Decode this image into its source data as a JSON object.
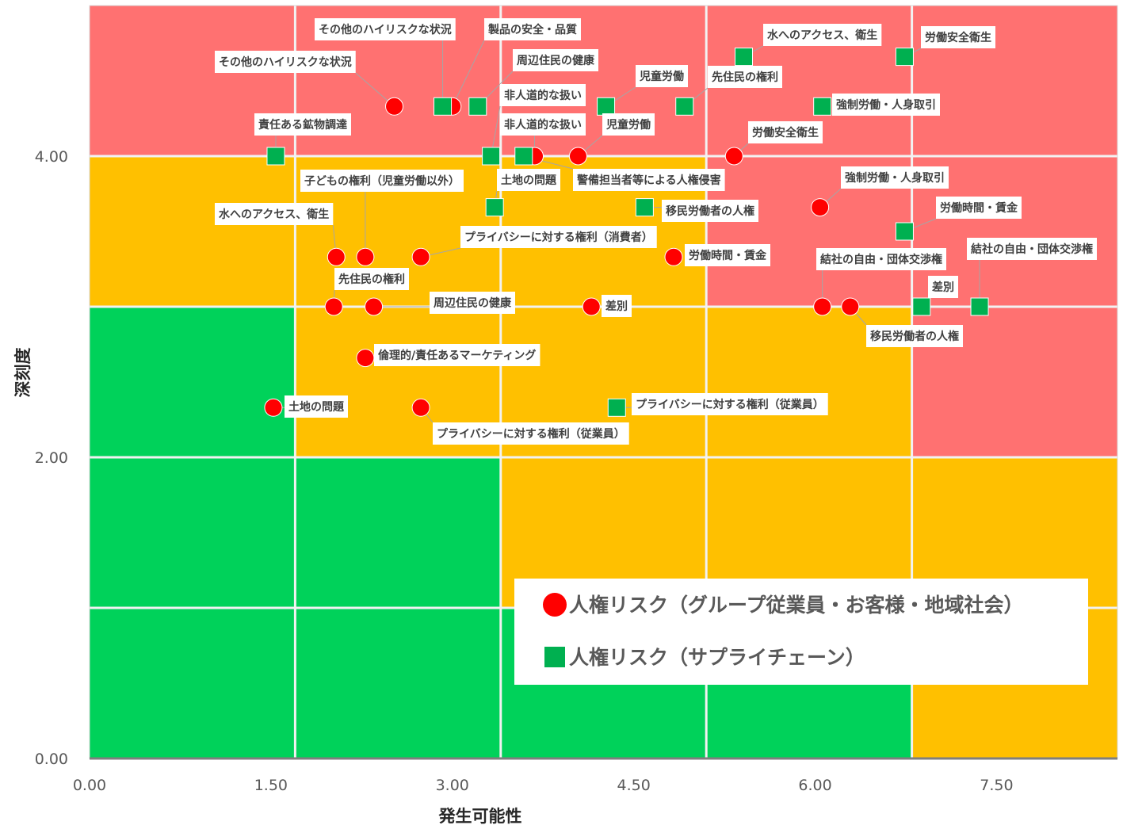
{
  "chart_data": {
    "type": "scatter",
    "xlabel": "発生可能性",
    "ylabel": "深刻度",
    "xlim": [
      0,
      8.5
    ],
    "ylim": [
      0,
      5
    ],
    "x_ticks": [
      "0.00",
      "1.50",
      "3.00",
      "4.50",
      "6.00",
      "7.50"
    ],
    "x_tick_values": [
      0,
      1.5,
      3,
      4.5,
      6,
      7.5
    ],
    "y_ticks": [
      "0.00",
      "2.00",
      "4.00"
    ],
    "y_tick_values": [
      0,
      2,
      4
    ],
    "legend_position": "bottom-right",
    "background_zones": {
      "x_bounds": [
        0,
        1.7,
        3.4,
        5.1,
        6.8,
        8.5
      ],
      "y_bounds": [
        0,
        1,
        2,
        3,
        4,
        5
      ],
      "rows_bottom_to_top": [
        [
          "green",
          "green",
          "green",
          "green",
          "orange"
        ],
        [
          "green",
          "green",
          "orange",
          "orange",
          "orange"
        ],
        [
          "green",
          "orange",
          "orange",
          "orange",
          "red"
        ],
        [
          "orange",
          "orange",
          "orange",
          "red",
          "red"
        ],
        [
          "red",
          "red",
          "red",
          "red",
          "red"
        ]
      ],
      "colors": {
        "red": "#FF7171",
        "orange": "#FFC000",
        "green": "#00D25A"
      }
    },
    "series": [
      {
        "name": "人権リスク（グループ従業員・お客様・地域社会）",
        "marker": "circle",
        "color": "#FF0000",
        "points": [
          {
            "x": 2.52,
            "y": 4.33,
            "label": "その他のハイリスクな状況"
          },
          {
            "x": 3.0,
            "y": 4.33,
            "label": "製品の安全・品質"
          },
          {
            "x": 3.68,
            "y": 4.0,
            "label": "非人道的な扱い"
          },
          {
            "x": 4.04,
            "y": 4.0,
            "label": "児童労働"
          },
          {
            "x": 5.33,
            "y": 4.0,
            "label": "労働安全衛生"
          },
          {
            "x": 6.04,
            "y": 3.66,
            "label": "強制労働・人身取引"
          },
          {
            "x": 2.04,
            "y": 3.33,
            "label": "水へのアクセス、衛生"
          },
          {
            "x": 2.28,
            "y": 3.33,
            "label": "子どもの権利（児童労働以外）"
          },
          {
            "x": 2.74,
            "y": 3.33,
            "label": "プライバシーに対する権利（消費者）"
          },
          {
            "x": 4.83,
            "y": 3.33,
            "label": "労働時間・賃金"
          },
          {
            "x": 2.02,
            "y": 3.0,
            "label": "先住民の権利"
          },
          {
            "x": 2.35,
            "y": 3.0,
            "label": "周辺住民の健康"
          },
          {
            "x": 4.15,
            "y": 3.0,
            "label": "差別"
          },
          {
            "x": 6.06,
            "y": 3.0,
            "label": "結社の自由・団体交渉権"
          },
          {
            "x": 6.29,
            "y": 3.0,
            "label": "移民労働者の人権"
          },
          {
            "x": 2.28,
            "y": 2.66,
            "label": "倫理的/責任あるマーケティング"
          },
          {
            "x": 1.52,
            "y": 2.33,
            "label": "土地の問題"
          },
          {
            "x": 2.74,
            "y": 2.33,
            "label": "プライバシーに対する権利（従業員）"
          }
        ]
      },
      {
        "name": "人権リスク（サプライチェーン）",
        "marker": "square",
        "color": "#00B050",
        "points": [
          {
            "x": 2.92,
            "y": 4.33,
            "label": "その他のハイリスクな状況"
          },
          {
            "x": 3.21,
            "y": 4.33,
            "label": "周辺住民の健康"
          },
          {
            "x": 4.27,
            "y": 4.33,
            "label": "児童労働"
          },
          {
            "x": 4.92,
            "y": 4.33,
            "label": "先住民の権利"
          },
          {
            "x": 5.41,
            "y": 4.66,
            "label": "水へのアクセス、衛生"
          },
          {
            "x": 6.74,
            "y": 4.66,
            "label": "労働安全衛生"
          },
          {
            "x": 6.06,
            "y": 4.33,
            "label": "強制労働・人身取引"
          },
          {
            "x": 1.54,
            "y": 4.0,
            "label": "責任ある鉱物調達"
          },
          {
            "x": 3.32,
            "y": 4.0,
            "label": "非人道的な扱い"
          },
          {
            "x": 3.59,
            "y": 4.0,
            "label": "警備担当者等による人権侵害"
          },
          {
            "x": 3.35,
            "y": 3.66,
            "label": "土地の問題"
          },
          {
            "x": 4.59,
            "y": 3.66,
            "label": "移民労働者の人権"
          },
          {
            "x": 6.74,
            "y": 3.5,
            "label": "労働時間・賃金"
          },
          {
            "x": 6.88,
            "y": 3.0,
            "label": "差別"
          },
          {
            "x": 7.36,
            "y": 3.0,
            "label": "結社の自由・団体交渉権"
          },
          {
            "x": 4.36,
            "y": 2.33,
            "label": "プライバシーに対する権利（従業員）"
          }
        ]
      }
    ]
  }
}
